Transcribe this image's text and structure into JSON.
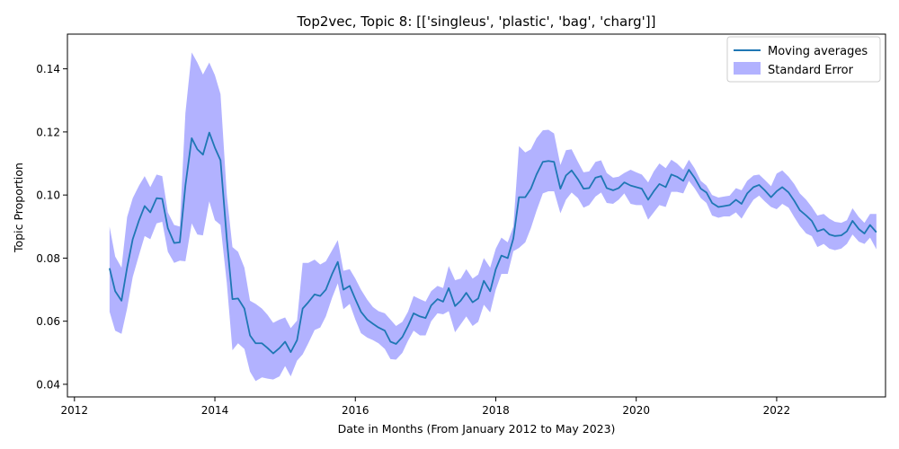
{
  "chart_data": {
    "type": "line",
    "title": "Top2vec, Topic 8: [['singleus', 'plastic', 'bag', 'charg']]",
    "xlabel": "Date in Months (From January 2012 to May 2023)",
    "ylabel": "Topic Proportion",
    "xlim": [
      2011.9,
      2023.55
    ],
    "ylim": [
      0.036,
      0.151
    ],
    "xticks": [
      2012,
      2014,
      2016,
      2018,
      2020,
      2022
    ],
    "xtick_labels": [
      "2012",
      "2014",
      "2016",
      "2018",
      "2020",
      "2022"
    ],
    "yticks": [
      0.04,
      0.06,
      0.08,
      0.1,
      0.12,
      0.14
    ],
    "ytick_labels": [
      "0.04",
      "0.06",
      "0.08",
      "0.10",
      "0.12",
      "0.14"
    ],
    "legend_position": "top-right",
    "grid": false,
    "series": [
      {
        "name": "Moving averages",
        "kind": "line",
        "color": "#1f77b4",
        "points": [
          [
            2012.5,
            0.0768
          ],
          [
            2012.58,
            0.0695
          ],
          [
            2012.67,
            0.0665
          ],
          [
            2012.75,
            0.077
          ],
          [
            2012.83,
            0.086
          ],
          [
            2012.92,
            0.092
          ],
          [
            2013.0,
            0.0965
          ],
          [
            2013.08,
            0.0945
          ],
          [
            2013.17,
            0.099
          ],
          [
            2013.25,
            0.0988
          ],
          [
            2013.33,
            0.0895
          ],
          [
            2013.42,
            0.0848
          ],
          [
            2013.5,
            0.085
          ],
          [
            2013.58,
            0.103
          ],
          [
            2013.67,
            0.118
          ],
          [
            2013.75,
            0.1145
          ],
          [
            2013.83,
            0.1128
          ],
          [
            2013.92,
            0.1198
          ],
          [
            2014.0,
            0.115
          ],
          [
            2014.08,
            0.111
          ],
          [
            2014.17,
            0.086
          ],
          [
            2014.25,
            0.067
          ],
          [
            2014.33,
            0.0672
          ],
          [
            2014.42,
            0.064
          ],
          [
            2014.5,
            0.0555
          ],
          [
            2014.58,
            0.053
          ],
          [
            2014.67,
            0.053
          ],
          [
            2014.75,
            0.0515
          ],
          [
            2014.83,
            0.0498
          ],
          [
            2014.92,
            0.0515
          ],
          [
            2015.0,
            0.0535
          ],
          [
            2015.08,
            0.0502
          ],
          [
            2015.17,
            0.054
          ],
          [
            2015.25,
            0.064
          ],
          [
            2015.33,
            0.066
          ],
          [
            2015.42,
            0.0685
          ],
          [
            2015.5,
            0.068
          ],
          [
            2015.58,
            0.07
          ],
          [
            2015.67,
            0.075
          ],
          [
            2015.75,
            0.0788
          ],
          [
            2015.83,
            0.07
          ],
          [
            2015.92,
            0.0712
          ],
          [
            2016.0,
            0.067
          ],
          [
            2016.08,
            0.063
          ],
          [
            2016.17,
            0.0605
          ],
          [
            2016.25,
            0.0592
          ],
          [
            2016.33,
            0.058
          ],
          [
            2016.42,
            0.057
          ],
          [
            2016.5,
            0.0535
          ],
          [
            2016.58,
            0.0528
          ],
          [
            2016.67,
            0.055
          ],
          [
            2016.75,
            0.0585
          ],
          [
            2016.83,
            0.0625
          ],
          [
            2016.92,
            0.0615
          ],
          [
            2017.0,
            0.061
          ],
          [
            2017.08,
            0.065
          ],
          [
            2017.17,
            0.067
          ],
          [
            2017.25,
            0.0662
          ],
          [
            2017.33,
            0.0705
          ],
          [
            2017.42,
            0.0648
          ],
          [
            2017.5,
            0.0665
          ],
          [
            2017.58,
            0.069
          ],
          [
            2017.67,
            0.066
          ],
          [
            2017.75,
            0.0672
          ],
          [
            2017.83,
            0.0728
          ],
          [
            2017.92,
            0.0695
          ],
          [
            2018.0,
            0.0765
          ],
          [
            2018.08,
            0.0808
          ],
          [
            2018.17,
            0.08
          ],
          [
            2018.25,
            0.0862
          ],
          [
            2018.33,
            0.0993
          ],
          [
            2018.42,
            0.0993
          ],
          [
            2018.5,
            0.102
          ],
          [
            2018.58,
            0.1065
          ],
          [
            2018.67,
            0.1105
          ],
          [
            2018.75,
            0.1108
          ],
          [
            2018.83,
            0.1105
          ],
          [
            2018.92,
            0.102
          ],
          [
            2019.0,
            0.1062
          ],
          [
            2019.08,
            0.1078
          ],
          [
            2019.17,
            0.105
          ],
          [
            2019.25,
            0.102
          ],
          [
            2019.33,
            0.1022
          ],
          [
            2019.42,
            0.1055
          ],
          [
            2019.5,
            0.106
          ],
          [
            2019.58,
            0.1022
          ],
          [
            2019.67,
            0.1015
          ],
          [
            2019.75,
            0.1022
          ],
          [
            2019.83,
            0.104
          ],
          [
            2019.92,
            0.103
          ],
          [
            2020.0,
            0.1025
          ],
          [
            2020.08,
            0.102
          ],
          [
            2020.17,
            0.0985
          ],
          [
            2020.25,
            0.1012
          ],
          [
            2020.33,
            0.1035
          ],
          [
            2020.42,
            0.1025
          ],
          [
            2020.5,
            0.1065
          ],
          [
            2020.58,
            0.1058
          ],
          [
            2020.67,
            0.1045
          ],
          [
            2020.75,
            0.108
          ],
          [
            2020.83,
            0.1055
          ],
          [
            2020.92,
            0.102
          ],
          [
            2021.0,
            0.1008
          ],
          [
            2021.08,
            0.0975
          ],
          [
            2021.17,
            0.0962
          ],
          [
            2021.25,
            0.0965
          ],
          [
            2021.33,
            0.0968
          ],
          [
            2021.42,
            0.0985
          ],
          [
            2021.5,
            0.0972
          ],
          [
            2021.58,
            0.1005
          ],
          [
            2021.67,
            0.1025
          ],
          [
            2021.75,
            0.1032
          ],
          [
            2021.83,
            0.1015
          ],
          [
            2021.92,
            0.0993
          ],
          [
            2022.0,
            0.1012
          ],
          [
            2022.08,
            0.1025
          ],
          [
            2022.17,
            0.1008
          ],
          [
            2022.25,
            0.0982
          ],
          [
            2022.33,
            0.0952
          ],
          [
            2022.42,
            0.0935
          ],
          [
            2022.5,
            0.0918
          ],
          [
            2022.58,
            0.0885
          ],
          [
            2022.67,
            0.0892
          ],
          [
            2022.75,
            0.0875
          ],
          [
            2022.83,
            0.087
          ],
          [
            2022.92,
            0.0872
          ],
          [
            2023.0,
            0.0885
          ],
          [
            2023.08,
            0.0918
          ],
          [
            2023.17,
            0.0892
          ],
          [
            2023.25,
            0.0878
          ],
          [
            2023.33,
            0.0905
          ],
          [
            2023.42,
            0.0882
          ]
        ]
      },
      {
        "name": "Standard Error",
        "kind": "band",
        "color": "#0000ff",
        "opacity": 0.3,
        "upper": [
          0.09,
          0.0805,
          0.077,
          0.093,
          0.099,
          0.103,
          0.106,
          0.1025,
          0.1065,
          0.106,
          0.0945,
          0.0905,
          0.09,
          0.126,
          0.1452,
          0.142,
          0.1382,
          0.142,
          0.138,
          0.132,
          0.1,
          0.0835,
          0.082,
          0.077,
          0.0665,
          0.0655,
          0.064,
          0.062,
          0.0595,
          0.0605,
          0.0612,
          0.0578,
          0.0602,
          0.0785,
          0.0785,
          0.0795,
          0.078,
          0.079,
          0.0825,
          0.0857,
          0.076,
          0.0765,
          0.0735,
          0.07,
          0.0668,
          0.0645,
          0.0632,
          0.0625,
          0.0605,
          0.0585,
          0.0598,
          0.063,
          0.068,
          0.067,
          0.0662,
          0.0695,
          0.0712,
          0.0705,
          0.0775,
          0.073,
          0.0735,
          0.0765,
          0.0735,
          0.0748,
          0.08,
          0.077,
          0.083,
          0.0865,
          0.085,
          0.09,
          0.1155,
          0.1135,
          0.1145,
          0.118,
          0.1205,
          0.1207,
          0.1195,
          0.1095,
          0.1142,
          0.1145,
          0.1105,
          0.1072,
          0.1075,
          0.1105,
          0.111,
          0.107,
          0.1055,
          0.1058,
          0.107,
          0.108,
          0.1072,
          0.1065,
          0.104,
          0.1075,
          0.11,
          0.1085,
          0.1112,
          0.11,
          0.108,
          0.1112,
          0.1085,
          0.1045,
          0.103,
          0.1,
          0.0992,
          0.0995,
          0.0998,
          0.1022,
          0.1015,
          0.1045,
          0.1062,
          0.1065,
          0.1048,
          0.1028,
          0.1068,
          0.1078,
          0.1058,
          0.1035,
          0.1005,
          0.0985,
          0.0962,
          0.0935,
          0.094,
          0.0925,
          0.0915,
          0.0912,
          0.092,
          0.0958,
          0.093,
          0.0912,
          0.094,
          0.094
        ],
        "lower": [
          0.063,
          0.057,
          0.056,
          0.064,
          0.074,
          0.081,
          0.087,
          0.086,
          0.091,
          0.0915,
          0.082,
          0.0785,
          0.0792,
          0.079,
          0.091,
          0.0875,
          0.0872,
          0.098,
          0.092,
          0.0905,
          0.072,
          0.0508,
          0.053,
          0.0512,
          0.044,
          0.041,
          0.0422,
          0.0418,
          0.0415,
          0.0425,
          0.0458,
          0.0425,
          0.0475,
          0.0495,
          0.053,
          0.0572,
          0.058,
          0.0615,
          0.0675,
          0.072,
          0.0638,
          0.0655,
          0.0605,
          0.0562,
          0.0548,
          0.054,
          0.053,
          0.0512,
          0.048,
          0.0478,
          0.05,
          0.0538,
          0.057,
          0.0555,
          0.0555,
          0.06,
          0.0625,
          0.0622,
          0.0632,
          0.0565,
          0.059,
          0.0615,
          0.0585,
          0.0598,
          0.0652,
          0.0628,
          0.07,
          0.075,
          0.075,
          0.0822,
          0.0832,
          0.085,
          0.0895,
          0.095,
          0.1005,
          0.1012,
          0.1012,
          0.0942,
          0.0985,
          0.1008,
          0.099,
          0.096,
          0.0968,
          0.0995,
          0.1008,
          0.0975,
          0.0972,
          0.0985,
          0.1005,
          0.0972,
          0.0968,
          0.0968,
          0.0922,
          0.0945,
          0.0968,
          0.0962,
          0.101,
          0.101,
          0.1005,
          0.1045,
          0.1022,
          0.099,
          0.0975,
          0.0935,
          0.0928,
          0.0932,
          0.0932,
          0.0945,
          0.0925,
          0.0955,
          0.0985,
          0.0998,
          0.098,
          0.0962,
          0.0955,
          0.0972,
          0.096,
          0.093,
          0.0902,
          0.0878,
          0.087,
          0.0835,
          0.0845,
          0.083,
          0.0825,
          0.083,
          0.0845,
          0.0875,
          0.0852,
          0.0845,
          0.0865,
          0.0828
        ]
      }
    ]
  }
}
